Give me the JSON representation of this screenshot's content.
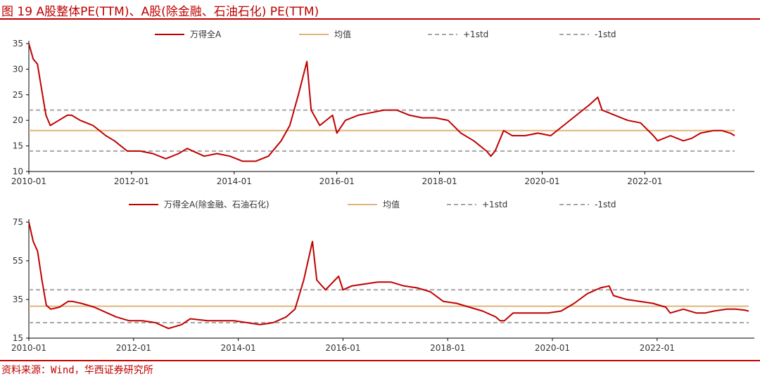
{
  "figure": {
    "title": "图 19 A股整体PE(TTM)、A股(除金融、石油石化) PE(TTM)",
    "source": "资料来源：Wind，华西证券研究所"
  },
  "colors": {
    "series": "#c00000",
    "mean": "#e0b47c",
    "std": "#a6a6a6",
    "axis": "#000000",
    "brand_red": "#c00000"
  },
  "chart_data": [
    {
      "type": "line",
      "title": "",
      "xlabel": "",
      "ylabel": "",
      "xlim": [
        "2010-01",
        "2023-10"
      ],
      "ylim": [
        10,
        35
      ],
      "yticks": [
        10,
        15,
        20,
        25,
        30,
        35
      ],
      "xticks": [
        "2010-01",
        "2012-01",
        "2014-01",
        "2016-01",
        "2018-01",
        "2020-01",
        "2022-01"
      ],
      "legend": {
        "placement": "top",
        "items": [
          {
            "name": "万得全A",
            "style": "series"
          },
          {
            "name": "均值",
            "style": "mean"
          },
          {
            "name": "+1std",
            "style": "std"
          },
          {
            "name": "-1std",
            "style": "std"
          }
        ]
      },
      "reference_lines": {
        "mean": 18.0,
        "plus_1std": 22.0,
        "minus_1std": 14.0
      },
      "series": [
        {
          "name": "万得全A",
          "x": [
            "2010-01",
            "2010-02",
            "2010-03",
            "2010-04",
            "2010-05",
            "2010-06",
            "2010-08",
            "2010-10",
            "2010-11",
            "2011-01",
            "2011-04",
            "2011-07",
            "2011-09",
            "2011-12",
            "2012-03",
            "2012-06",
            "2012-09",
            "2012-12",
            "2013-02",
            "2013-06",
            "2013-09",
            "2013-12",
            "2014-03",
            "2014-06",
            "2014-09",
            "2014-12",
            "2015-02",
            "2015-04",
            "2015-06",
            "2015-07",
            "2015-09",
            "2015-12",
            "2016-01",
            "2016-03",
            "2016-06",
            "2016-09",
            "2016-12",
            "2017-03",
            "2017-06",
            "2017-09",
            "2017-12",
            "2018-03",
            "2018-06",
            "2018-09",
            "2018-12",
            "2019-01",
            "2019-02",
            "2019-04",
            "2019-06",
            "2019-09",
            "2019-12",
            "2020-03",
            "2020-06",
            "2020-09",
            "2020-12",
            "2021-02",
            "2021-03",
            "2021-06",
            "2021-09",
            "2021-12",
            "2022-03",
            "2022-04",
            "2022-07",
            "2022-10",
            "2022-12",
            "2023-02",
            "2023-05",
            "2023-07",
            "2023-09",
            "2023-10"
          ],
          "y": [
            35,
            32,
            31,
            26,
            21,
            19,
            20,
            21,
            21,
            20,
            19,
            17,
            16,
            14,
            14,
            13.5,
            12.5,
            13.5,
            14.5,
            13,
            13.5,
            13,
            12,
            12,
            13,
            16,
            19,
            25,
            31.5,
            22,
            19,
            21,
            17.5,
            20,
            21,
            21.5,
            22,
            22,
            21,
            20.5,
            20.5,
            20,
            17.5,
            16,
            14,
            13,
            14,
            18,
            17,
            17,
            17.5,
            17,
            19,
            21,
            23,
            24.5,
            22,
            21,
            20,
            19.5,
            17,
            16,
            17,
            16,
            16.5,
            17.5,
            18,
            18,
            17.5,
            17
          ]
        }
      ]
    },
    {
      "type": "line",
      "title": "",
      "xlabel": "",
      "ylabel": "",
      "xlim": [
        "2010-01",
        "2023-10"
      ],
      "ylim": [
        15,
        75
      ],
      "yticks": [
        15,
        35,
        55,
        75
      ],
      "xticks": [
        "2010-01",
        "2012-01",
        "2014-01",
        "2016-01",
        "2018-01",
        "2020-01",
        "2022-01"
      ],
      "legend": {
        "placement": "top",
        "items": [
          {
            "name": "万得全A(除金融、石油石化)",
            "style": "series"
          },
          {
            "name": "均值",
            "style": "mean"
          },
          {
            "name": "+1std",
            "style": "std"
          },
          {
            "name": "-1std",
            "style": "std"
          }
        ]
      },
      "reference_lines": {
        "mean": 31.5,
        "plus_1std": 40.0,
        "minus_1std": 23.0
      },
      "series": [
        {
          "name": "万得全A(除金融、石油石化)",
          "x": [
            "2010-01",
            "2010-02",
            "2010-03",
            "2010-04",
            "2010-05",
            "2010-06",
            "2010-08",
            "2010-10",
            "2010-11",
            "2011-01",
            "2011-04",
            "2011-07",
            "2011-09",
            "2011-12",
            "2012-03",
            "2012-06",
            "2012-09",
            "2012-12",
            "2013-02",
            "2013-06",
            "2013-09",
            "2013-12",
            "2014-03",
            "2014-06",
            "2014-09",
            "2014-12",
            "2015-02",
            "2015-04",
            "2015-06",
            "2015-07",
            "2015-09",
            "2015-12",
            "2016-01",
            "2016-03",
            "2016-06",
            "2016-09",
            "2016-12",
            "2017-03",
            "2017-06",
            "2017-09",
            "2017-12",
            "2018-03",
            "2018-06",
            "2018-09",
            "2018-12",
            "2019-01",
            "2019-02",
            "2019-04",
            "2019-06",
            "2019-09",
            "2019-12",
            "2020-03",
            "2020-06",
            "2020-09",
            "2020-12",
            "2021-02",
            "2021-03",
            "2021-06",
            "2021-09",
            "2021-12",
            "2022-03",
            "2022-04",
            "2022-07",
            "2022-10",
            "2022-12",
            "2023-02",
            "2023-05",
            "2023-07",
            "2023-09",
            "2023-10"
          ],
          "y": [
            75,
            65,
            60,
            45,
            32,
            30,
            31,
            34,
            34,
            33,
            31,
            28,
            26,
            24,
            24,
            23,
            20,
            22,
            25,
            24,
            24,
            24,
            23,
            22,
            23,
            26,
            30,
            45,
            65,
            45,
            40,
            47,
            40,
            42,
            43,
            44,
            44,
            42,
            41,
            39,
            34,
            33,
            31,
            29,
            26,
            24,
            24,
            28,
            28,
            28,
            28,
            29,
            33,
            38,
            41,
            42,
            37,
            35,
            34,
            33,
            31,
            28,
            30,
            28,
            28,
            29,
            30,
            30,
            29.5,
            29
          ]
        }
      ]
    }
  ]
}
